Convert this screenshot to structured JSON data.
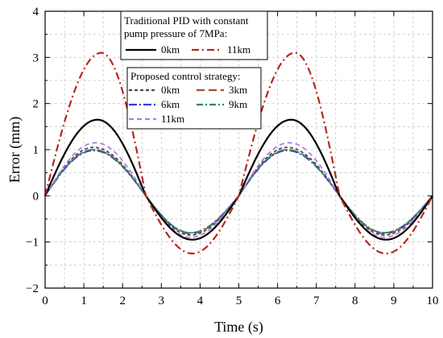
{
  "chart_data": {
    "type": "line",
    "xlabel": "Time (s)",
    "ylabel": "Error (mm)",
    "xlim": [
      0,
      10
    ],
    "ylim": [
      -2,
      4
    ],
    "xticks": [
      "0",
      "1",
      "2",
      "3",
      "4",
      "5",
      "6",
      "7",
      "8",
      "9",
      "10"
    ],
    "yticks": [
      "-2",
      "-1",
      "0",
      "1",
      "2",
      "3",
      "4"
    ],
    "grid": true,
    "legend_groups": [
      {
        "title": "Traditional PID with constant pump pressure of 7MPa:",
        "title_lines": [
          "Traditional PID with constant",
          "pump pressure of 7MPa:"
        ],
        "series": [
          "0km",
          "11km"
        ]
      },
      {
        "title": "Proposed control strategy:",
        "title_lines": [
          "Proposed control strategy:"
        ],
        "series": [
          "0km",
          "3km",
          "6km",
          "9km",
          "11km"
        ]
      }
    ],
    "series": [
      {
        "name": "0km",
        "group": "Traditional PID",
        "color": "#000000",
        "dash": "",
        "width": 2.2,
        "peak": 1.65,
        "trough": -0.95,
        "peak_t": 1.35,
        "trough_t": 3.8
      },
      {
        "name": "11km",
        "group": "Traditional PID",
        "color": "#b5291c",
        "dash": "9,4,2,4",
        "width": 2.2,
        "peak": 3.1,
        "trough": -1.25,
        "peak_t": 1.45,
        "trough_t": 3.8
      },
      {
        "name": "0km",
        "group": "Proposed",
        "color": "#4a4a4a",
        "dash": "4,3",
        "width": 1.8,
        "peak": 1.05,
        "trough": -0.85,
        "peak_t": 1.25,
        "trough_t": 3.75
      },
      {
        "name": "3km",
        "group": "Proposed",
        "color": "#a0522d",
        "dash": "10,5",
        "width": 1.8,
        "peak": 1.0,
        "trough": -0.82,
        "peak_t": 1.25,
        "trough_t": 3.75
      },
      {
        "name": "6km",
        "group": "Proposed",
        "color": "#3b3bdc",
        "dash": "10,3,2,3",
        "width": 1.8,
        "peak": 0.98,
        "trough": -0.8,
        "peak_t": 1.25,
        "trough_t": 3.75
      },
      {
        "name": "9km",
        "group": "Proposed",
        "color": "#2e8b57",
        "dash": "8,3,2,3",
        "width": 1.8,
        "peak": 1.0,
        "trough": -0.8,
        "peak_t": 1.25,
        "trough_t": 3.75
      },
      {
        "name": "11km",
        "group": "Proposed",
        "color": "#b27ee6",
        "dash": "6,4",
        "width": 1.8,
        "peak": 1.15,
        "trough": -0.9,
        "peak_t": 1.3,
        "trough_t": 3.75
      }
    ],
    "period": 5,
    "zero_crossings": [
      0,
      2.6,
      5
    ]
  }
}
